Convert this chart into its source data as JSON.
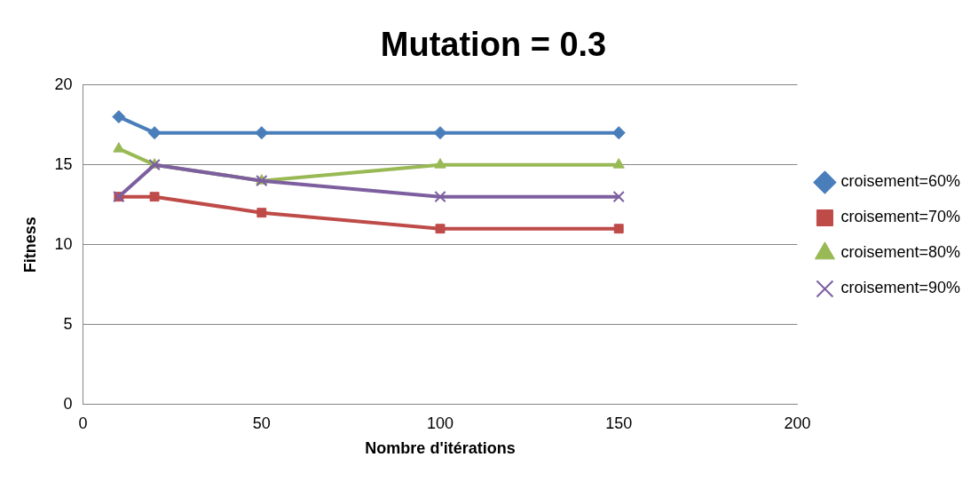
{
  "chart_data": {
    "type": "line",
    "title": "Mutation = 0.3",
    "xlabel": "Nombre d'itérations",
    "ylabel": "Fitness",
    "x": [
      10,
      20,
      50,
      100,
      150
    ],
    "series": [
      {
        "name": "croisement=60%",
        "color": "#4a7ebb",
        "marker": "diamond",
        "values": [
          18,
          17,
          17,
          17,
          17
        ]
      },
      {
        "name": "croisement=70%",
        "color": "#be4b48",
        "marker": "square",
        "values": [
          13,
          13,
          12,
          11,
          11
        ]
      },
      {
        "name": "croisement=80%",
        "color": "#98b954",
        "marker": "triangle",
        "values": [
          16,
          15,
          14,
          15,
          15
        ]
      },
      {
        "name": "croisement=90%",
        "color": "#7d5fa0",
        "marker": "cross",
        "values": [
          13,
          15,
          14,
          13,
          13
        ]
      }
    ],
    "xlim": [
      0,
      200
    ],
    "xticks": [
      0,
      50,
      100,
      150,
      200
    ],
    "ylim": [
      0,
      20
    ],
    "yticks": [
      0,
      5,
      10,
      15,
      20
    ],
    "grid": "y",
    "legend": "right",
    "line_style": "solid"
  }
}
